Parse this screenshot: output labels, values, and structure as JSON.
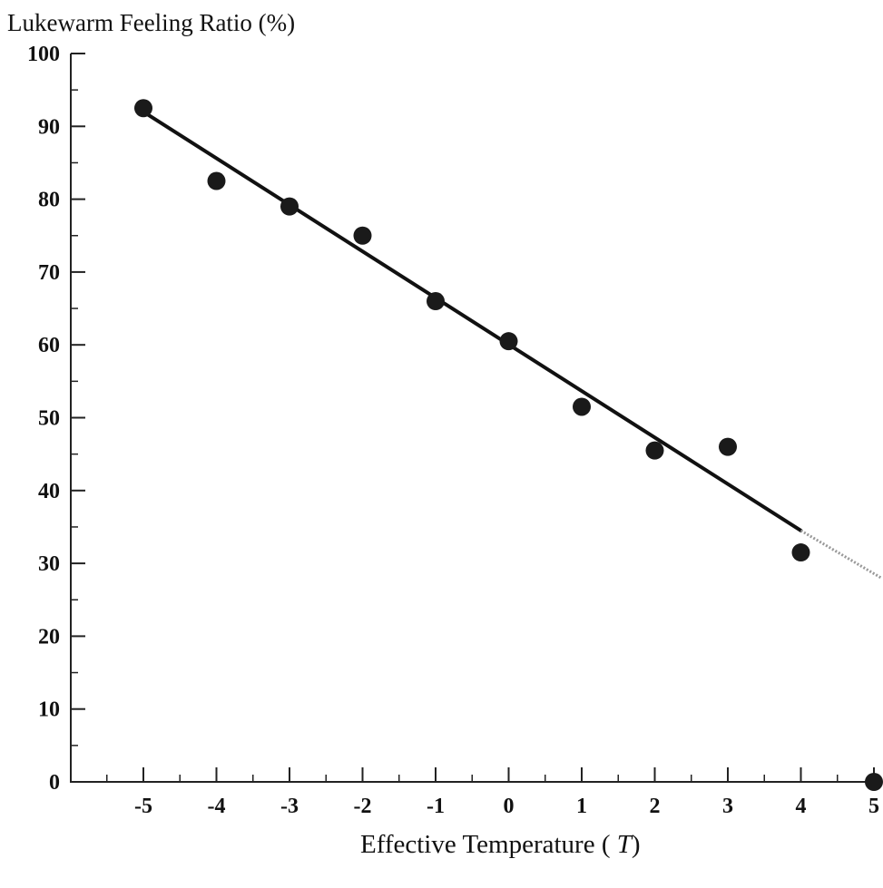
{
  "chart_data": {
    "type": "scatter",
    "ylabel": "Lukewarm Feeling Ratio (%)",
    "xlabel_prefix": "Effective Temperature ( ",
    "xlabel_var": "T",
    "xlabel_suffix": ")",
    "xlim": [
      -6,
      5
    ],
    "ylim": [
      0,
      100
    ],
    "x_ticks": [
      -5,
      -4,
      -3,
      -2,
      -1,
      0,
      1,
      2,
      3,
      4,
      5
    ],
    "y_ticks": [
      0,
      10,
      20,
      30,
      40,
      50,
      60,
      70,
      80,
      90,
      100
    ],
    "grid": false,
    "legend": "none",
    "points": [
      {
        "x": -5,
        "y": 92.5
      },
      {
        "x": -4,
        "y": 82.5
      },
      {
        "x": -3,
        "y": 79
      },
      {
        "x": -2,
        "y": 75
      },
      {
        "x": -1,
        "y": 66
      },
      {
        "x": 0,
        "y": 60.5
      },
      {
        "x": 1,
        "y": 51.5
      },
      {
        "x": 2,
        "y": 45.5
      },
      {
        "x": 3,
        "y": 46
      },
      {
        "x": 4,
        "y": 31.5
      },
      {
        "x": 5,
        "y": 0
      }
    ],
    "fit_line": {
      "x_start": -5,
      "y_start": 92,
      "x_end": 4,
      "y_end": 34.5,
      "style": "solid"
    },
    "fit_line_extension": {
      "x_start": 4,
      "y_start": 34.5,
      "x_end": 5.1,
      "y_end": 28,
      "style": "dotted"
    },
    "colors": {
      "marker": "#1a1a1a",
      "line": "#111111",
      "axis": "#222222",
      "extension": "#999999"
    }
  }
}
